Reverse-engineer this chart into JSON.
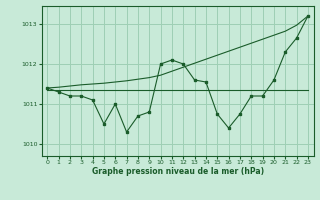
{
  "background_color": "#c8ead8",
  "grid_color": "#9ecfb4",
  "line_color": "#1a5c2a",
  "text_color": "#1a5c2a",
  "xlabel": "Graphe pression niveau de la mer (hPa)",
  "xlim": [
    -0.5,
    23.5
  ],
  "ylim": [
    1009.7,
    1013.45
  ],
  "yticks": [
    1010,
    1011,
    1012,
    1013
  ],
  "xticks": [
    0,
    1,
    2,
    3,
    4,
    5,
    6,
    7,
    8,
    9,
    10,
    11,
    12,
    13,
    14,
    15,
    16,
    17,
    18,
    19,
    20,
    21,
    22,
    23
  ],
  "series1": [
    1011.4,
    1011.3,
    1011.2,
    1011.2,
    1011.1,
    1010.5,
    1011.0,
    1010.3,
    1010.7,
    1010.8,
    1012.0,
    1012.1,
    1012.0,
    1011.6,
    1011.55,
    1010.75,
    1010.4,
    1010.75,
    1011.2,
    1011.2,
    1011.6,
    1012.3,
    1012.65,
    1013.2
  ],
  "series_flat": [
    1011.35,
    1011.35,
    1011.35,
    1011.35,
    1011.35,
    1011.35,
    1011.35,
    1011.35,
    1011.35,
    1011.35,
    1011.35,
    1011.35,
    1011.35,
    1011.35,
    1011.35,
    1011.35,
    1011.35,
    1011.35,
    1011.35,
    1011.35,
    1011.35,
    1011.35,
    1011.35,
    1011.35
  ],
  "series_trend": [
    1011.4,
    1011.42,
    1011.45,
    1011.48,
    1011.5,
    1011.52,
    1011.55,
    1011.58,
    1011.62,
    1011.66,
    1011.72,
    1011.82,
    1011.92,
    1012.02,
    1012.12,
    1012.22,
    1012.32,
    1012.42,
    1012.52,
    1012.62,
    1012.72,
    1012.82,
    1012.97,
    1013.2
  ]
}
